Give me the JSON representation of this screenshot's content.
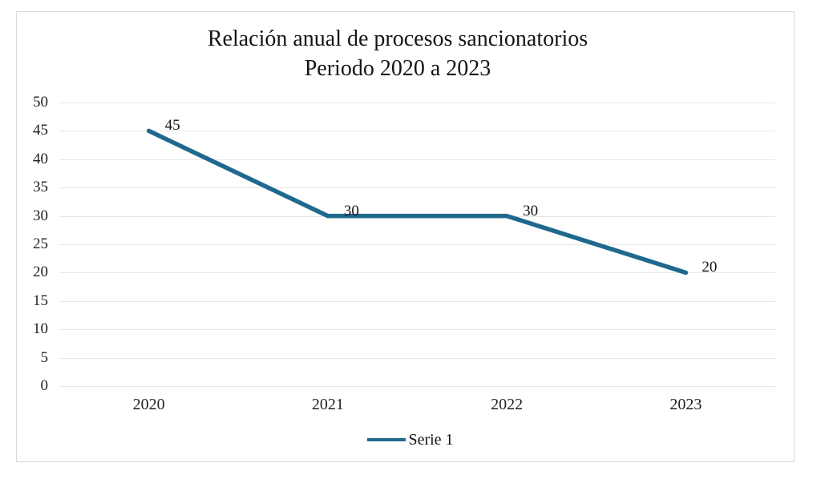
{
  "title": {
    "line1": "Relación anual de procesos sancionatorios",
    "line2": "Periodo 2020 a 2023"
  },
  "chart_data": {
    "type": "line",
    "title": "Relación anual de procesos sancionatorios Periodo 2020 a 2023",
    "categories": [
      "2020",
      "2021",
      "2022",
      "2023"
    ],
    "series": [
      {
        "name": "Serie 1",
        "values": [
          45,
          30,
          30,
          20
        ]
      }
    ],
    "data_labels": [
      "45",
      "30",
      "30",
      "20"
    ],
    "xlabel": "",
    "ylabel": "",
    "ylim": [
      0,
      50
    ],
    "yticks": [
      0,
      5,
      10,
      15,
      20,
      25,
      30,
      35,
      40,
      45,
      50
    ],
    "grid": true,
    "legend_position": "bottom-center",
    "colors": {
      "line": "#20698e",
      "gridline": "#e6e6e6",
      "text": "#1f1f1f",
      "border": "#d9d9d9"
    }
  },
  "legend": {
    "label": "Serie 1"
  }
}
